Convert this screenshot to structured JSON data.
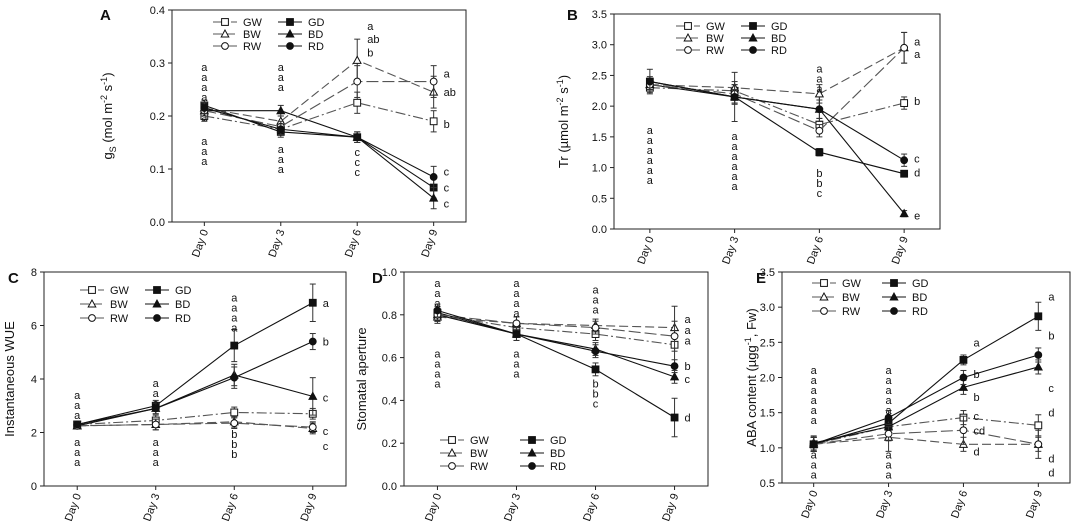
{
  "figure": {
    "x_categories": [
      "Day 0",
      "Day 3",
      "Day 6",
      "Day 9"
    ]
  },
  "legend_labels": [
    "GW",
    "GD",
    "BW",
    "BD",
    "RW",
    "RD"
  ],
  "chart_data": [
    {
      "panel": "A",
      "type": "line",
      "ylabel_main": "g",
      "ylabel_sub": "S",
      "ylabel_units": "(mol m",
      "ylabel_exp1": "-2",
      "ylabel_mid": " s",
      "ylabel_exp2": "-1",
      "ylabel_end": ")",
      "ylim": [
        0.0,
        0.4
      ],
      "yticks": [
        "0.0",
        "0.1",
        "0.2",
        "0.3",
        "0.4"
      ],
      "categories": [
        "Day 0",
        "Day 3",
        "Day 6",
        "Day 9"
      ],
      "legend_pos": "top",
      "series": [
        {
          "name": "GW",
          "values": [
            0.2,
            0.175,
            0.225,
            0.19
          ],
          "err": [
            0.01,
            0.01,
            0.02,
            0.02
          ]
        },
        {
          "name": "GD",
          "values": [
            0.22,
            0.17,
            0.16,
            0.065
          ],
          "err": [
            0.01,
            0.01,
            0.01,
            0.02
          ]
        },
        {
          "name": "BW",
          "values": [
            0.215,
            0.19,
            0.305,
            0.245
          ],
          "err": [
            0.01,
            0.01,
            0.04,
            0.03
          ]
        },
        {
          "name": "BD",
          "values": [
            0.21,
            0.21,
            0.16,
            0.045
          ],
          "err": [
            0.01,
            0.01,
            0.01,
            0.02
          ]
        },
        {
          "name": "RW",
          "values": [
            0.21,
            0.18,
            0.265,
            0.265
          ],
          "err": [
            0.01,
            0.01,
            0.03,
            0.03
          ]
        },
        {
          "name": "RD",
          "values": [
            0.215,
            0.175,
            0.16,
            0.085
          ],
          "err": [
            0.01,
            0.01,
            0.01,
            0.02
          ]
        }
      ],
      "letter_columns": [
        {
          "x": "Day 0",
          "at": 0.285,
          "letters": [
            "a",
            "a",
            "a",
            "a",
            "a",
            "a"
          ]
        },
        {
          "x": "Day 0",
          "at": 0.145,
          "letters": [
            "a",
            "a",
            "a"
          ]
        },
        {
          "x": "Day 3",
          "at": 0.285,
          "letters": [
            "a",
            "a",
            "a"
          ]
        },
        {
          "x": "Day 3",
          "at": 0.13,
          "letters": [
            "a",
            "a",
            "a"
          ]
        },
        {
          "x": "Day 6",
          "at": 0.125,
          "letters": [
            "c",
            "c",
            "c"
          ]
        }
      ],
      "end_labels": [
        {
          "x": "Day 6",
          "at": 0.37,
          "text": "a"
        },
        {
          "x": "Day 6",
          "at": 0.345,
          "text": "ab"
        },
        {
          "x": "Day 6",
          "at": 0.32,
          "text": "b"
        },
        {
          "x": "Day 9",
          "at": 0.28,
          "text": "a"
        },
        {
          "x": "Day 9",
          "at": 0.245,
          "text": "ab"
        },
        {
          "x": "Day 9",
          "at": 0.185,
          "text": "b"
        },
        {
          "x": "Day 9",
          "at": 0.095,
          "text": "c"
        },
        {
          "x": "Day 9",
          "at": 0.065,
          "text": "c"
        },
        {
          "x": "Day 9",
          "at": 0.035,
          "text": "c"
        }
      ]
    },
    {
      "panel": "B",
      "type": "line",
      "ylabel_main": "Tr",
      "ylabel_sub": "",
      "ylabel_units": "(µmol m",
      "ylabel_exp1": "-2",
      "ylabel_mid": " s",
      "ylabel_exp2": "-1",
      "ylabel_end": ")",
      "ylim": [
        0.0,
        3.5
      ],
      "yticks": [
        "0.0",
        "0.5",
        "1.0",
        "1.5",
        "2.0",
        "2.5",
        "3.0",
        "3.5"
      ],
      "categories": [
        "Day 0",
        "Day 3",
        "Day 6",
        "Day 9"
      ],
      "legend_pos": "top",
      "series": [
        {
          "name": "GW",
          "values": [
            2.3,
            2.25,
            1.7,
            2.05
          ],
          "err": [
            0.08,
            0.1,
            0.1,
            0.1
          ]
        },
        {
          "name": "GD",
          "values": [
            2.4,
            2.15,
            1.25,
            0.9
          ],
          "err": [
            0.08,
            0.1,
            0.06,
            0.05
          ]
        },
        {
          "name": "BW",
          "values": [
            2.35,
            2.3,
            2.2,
            2.95
          ],
          "err": [
            0.08,
            0.1,
            0.15,
            0.25
          ]
        },
        {
          "name": "BD",
          "values": [
            2.35,
            2.15,
            1.95,
            0.25
          ],
          "err": [
            0.08,
            0.12,
            0.15,
            0.05
          ]
        },
        {
          "name": "RW",
          "values": [
            2.35,
            2.2,
            1.6,
            2.95
          ],
          "err": [
            0.08,
            0.15,
            0.1,
            0.25
          ]
        },
        {
          "name": "RD",
          "values": [
            2.4,
            2.15,
            1.95,
            1.12
          ],
          "err": [
            0.2,
            0.4,
            0.2,
            0.1
          ]
        }
      ],
      "letter_columns": [
        {
          "x": "Day 0",
          "at": 1.55,
          "letters": [
            "a",
            "a",
            "a",
            "a",
            "a",
            "a"
          ]
        },
        {
          "x": "Day 3",
          "at": 1.45,
          "letters": [
            "a",
            "a",
            "a",
            "a",
            "a",
            "a"
          ]
        },
        {
          "x": "Day 6",
          "at": 2.55,
          "letters": [
            "a",
            "a",
            "a"
          ]
        },
        {
          "x": "Day 6",
          "at": 0.85,
          "letters": [
            "b",
            "b",
            "c"
          ]
        }
      ],
      "end_labels": [
        {
          "x": "Day 9",
          "at": 3.05,
          "text": "a"
        },
        {
          "x": "Day 9",
          "at": 2.85,
          "text": "a"
        },
        {
          "x": "Day 9",
          "at": 2.08,
          "text": "b"
        },
        {
          "x": "Day 9",
          "at": 1.15,
          "text": "c"
        },
        {
          "x": "Day 9",
          "at": 0.92,
          "text": "d"
        },
        {
          "x": "Day 9",
          "at": 0.22,
          "text": "e"
        }
      ]
    },
    {
      "panel": "C",
      "type": "line",
      "ylabel_main": "Instantaneous WUE",
      "ylabel_sub": "",
      "ylabel_units": "",
      "ylabel_exp1": "",
      "ylabel_mid": "",
      "ylabel_exp2": "",
      "ylabel_end": "",
      "ylim": [
        0,
        8
      ],
      "yticks": [
        "0",
        "2",
        "4",
        "6",
        "8"
      ],
      "categories": [
        "Day 0",
        "Day 3",
        "Day 6",
        "Day 9"
      ],
      "legend_pos": "top",
      "series": [
        {
          "name": "GW",
          "values": [
            2.3,
            2.45,
            2.75,
            2.7
          ],
          "err": [
            0.1,
            0.2,
            0.2,
            0.2
          ]
        },
        {
          "name": "GD",
          "values": [
            2.3,
            3.0,
            5.25,
            6.85
          ],
          "err": [
            0.1,
            0.2,
            0.6,
            0.7
          ]
        },
        {
          "name": "BW",
          "values": [
            2.25,
            2.3,
            2.4,
            2.15
          ],
          "err": [
            0.1,
            0.2,
            0.2,
            0.2
          ]
        },
        {
          "name": "BD",
          "values": [
            2.25,
            2.9,
            4.15,
            3.35
          ],
          "err": [
            0.1,
            0.2,
            0.4,
            0.7
          ]
        },
        {
          "name": "RW",
          "values": [
            2.25,
            2.3,
            2.35,
            2.2
          ],
          "err": [
            0.1,
            0.2,
            0.2,
            0.2
          ]
        },
        {
          "name": "RD",
          "values": [
            2.3,
            2.9,
            4.05,
            5.4
          ],
          "err": [
            0.1,
            0.2,
            0.4,
            0.3
          ]
        }
      ],
      "letter_columns": [
        {
          "x": "Day 0",
          "at": 3.25,
          "letters": [
            "a",
            "a",
            "a"
          ]
        },
        {
          "x": "Day 0",
          "at": 1.5,
          "letters": [
            "a",
            "a",
            "a"
          ]
        },
        {
          "x": "Day 3",
          "at": 3.7,
          "letters": [
            "a",
            "a",
            "a"
          ]
        },
        {
          "x": "Day 3",
          "at": 1.5,
          "letters": [
            "a",
            "a",
            "a"
          ]
        },
        {
          "x": "Day 6",
          "at": 6.9,
          "letters": [
            "a",
            "a",
            "a",
            "a"
          ]
        },
        {
          "x": "Day 6",
          "at": 1.8,
          "letters": [
            "b",
            "b",
            "b"
          ]
        }
      ],
      "end_labels": [
        {
          "x": "Day 9",
          "at": 6.85,
          "text": "a"
        },
        {
          "x": "Day 9",
          "at": 5.4,
          "text": "b"
        },
        {
          "x": "Day 9",
          "at": 3.3,
          "text": "c"
        },
        {
          "x": "Day 9",
          "at": 2.05,
          "text": "c"
        },
        {
          "x": "Day 9",
          "at": 1.5,
          "text": "c"
        }
      ]
    },
    {
      "panel": "D",
      "type": "line",
      "ylabel_main": "Stomatal aperture",
      "ylabel_sub": "",
      "ylabel_units": "",
      "ylabel_exp1": "",
      "ylabel_mid": "",
      "ylabel_exp2": "",
      "ylabel_end": "",
      "ylim": [
        0.0,
        1.0
      ],
      "yticks": [
        "0.0",
        "0.2",
        "0.4",
        "0.6",
        "0.8",
        "1.0"
      ],
      "categories": [
        "Day 0",
        "Day 3",
        "Day 6",
        "Day 9"
      ],
      "legend_pos": "bottom",
      "series": [
        {
          "name": "GW",
          "values": [
            0.8,
            0.74,
            0.71,
            0.66
          ],
          "err": [
            0.03,
            0.03,
            0.03,
            0.03
          ]
        },
        {
          "name": "GD",
          "values": [
            0.81,
            0.71,
            0.545,
            0.32
          ],
          "err": [
            0.03,
            0.03,
            0.03,
            0.09
          ]
        },
        {
          "name": "BW",
          "values": [
            0.79,
            0.76,
            0.75,
            0.74
          ],
          "err": [
            0.03,
            0.03,
            0.03,
            0.03
          ]
        },
        {
          "name": "BD",
          "values": [
            0.8,
            0.71,
            0.64,
            0.51
          ],
          "err": [
            0.03,
            0.03,
            0.03,
            0.03
          ]
        },
        {
          "name": "RW",
          "values": [
            0.8,
            0.76,
            0.74,
            0.7
          ],
          "err": [
            0.03,
            0.03,
            0.03,
            0.14
          ]
        },
        {
          "name": "RD",
          "values": [
            0.82,
            0.71,
            0.63,
            0.56
          ],
          "err": [
            0.03,
            0.03,
            0.03,
            0.03
          ]
        }
      ],
      "letter_columns": [
        {
          "x": "Day 0",
          "at": 0.93,
          "letters": [
            "a",
            "a",
            "a"
          ]
        },
        {
          "x": "Day 0",
          "at": 0.6,
          "letters": [
            "a",
            "a",
            "a",
            "a"
          ]
        },
        {
          "x": "Day 3",
          "at": 0.93,
          "letters": [
            "a",
            "a",
            "a",
            "a"
          ]
        },
        {
          "x": "Day 3",
          "at": 0.6,
          "letters": [
            "a",
            "a",
            "a"
          ]
        },
        {
          "x": "Day 6",
          "at": 0.9,
          "letters": [
            "a",
            "a",
            "a"
          ]
        },
        {
          "x": "Day 6",
          "at": 0.46,
          "letters": [
            "b",
            "b",
            "c"
          ]
        }
      ],
      "end_labels": [
        {
          "x": "Day 9",
          "at": 0.78,
          "text": "a"
        },
        {
          "x": "Day 9",
          "at": 0.73,
          "text": "a"
        },
        {
          "x": "Day 9",
          "at": 0.68,
          "text": "a"
        },
        {
          "x": "Day 9",
          "at": 0.56,
          "text": "b"
        },
        {
          "x": "Day 9",
          "at": 0.5,
          "text": "c"
        },
        {
          "x": "Day 9",
          "at": 0.32,
          "text": "d"
        }
      ]
    },
    {
      "panel": "E",
      "type": "line",
      "ylabel_main": "ABA content (µgg",
      "ylabel_sub": "",
      "ylabel_units": "",
      "ylabel_exp1": "-1",
      "ylabel_mid": ", Fw)",
      "ylabel_exp2": "",
      "ylabel_end": "",
      "ylim": [
        0.5,
        3.5
      ],
      "yticks": [
        "0.5",
        "1.0",
        "1.5",
        "2.0",
        "2.5",
        "3.0",
        "3.5"
      ],
      "categories": [
        "Day 0",
        "Day 3",
        "Day 6",
        "Day 9"
      ],
      "legend_pos": "top",
      "series": [
        {
          "name": "GW",
          "values": [
            1.05,
            1.3,
            1.43,
            1.32
          ],
          "err": [
            0.1,
            0.1,
            0.1,
            0.15
          ]
        },
        {
          "name": "GD",
          "values": [
            1.05,
            1.35,
            2.25,
            2.87
          ],
          "err": [
            0.1,
            0.1,
            0.07,
            0.2
          ]
        },
        {
          "name": "BW",
          "values": [
            1.05,
            1.15,
            1.05,
            1.05
          ],
          "err": [
            0.1,
            0.2,
            0.1,
            0.1
          ]
        },
        {
          "name": "BD",
          "values": [
            1.07,
            1.3,
            1.86,
            2.15
          ],
          "err": [
            0.1,
            0.1,
            0.1,
            0.1
          ]
        },
        {
          "name": "RW",
          "values": [
            1.05,
            1.2,
            1.25,
            1.05
          ],
          "err": [
            0.1,
            0.1,
            0.2,
            0.2
          ]
        },
        {
          "name": "RD",
          "values": [
            1.05,
            1.43,
            2.0,
            2.32
          ],
          "err": [
            0.1,
            0.1,
            0.1,
            0.1
          ]
        }
      ],
      "letter_columns": [
        {
          "x": "Day 0",
          "at": 2.05,
          "letters": [
            "a",
            "a",
            "a",
            "a",
            "a",
            "a"
          ]
        },
        {
          "x": "Day 0",
          "at": 0.85,
          "letters": [
            "a",
            "a",
            "a"
          ]
        },
        {
          "x": "Day 3",
          "at": 2.05,
          "letters": [
            "a",
            "a",
            "a",
            "a",
            "a",
            "a"
          ]
        },
        {
          "x": "Day 3",
          "at": 0.85,
          "letters": [
            "a",
            "a",
            "a"
          ]
        }
      ],
      "end_labels": [
        {
          "x": "Day 6",
          "at": 2.5,
          "text": "a"
        },
        {
          "x": "Day 6",
          "at": 2.05,
          "text": "b"
        },
        {
          "x": "Day 6",
          "at": 1.72,
          "text": "b"
        },
        {
          "x": "Day 6",
          "at": 1.45,
          "text": "c"
        },
        {
          "x": "Day 6",
          "at": 1.25,
          "text": "cd"
        },
        {
          "x": "Day 6",
          "at": 0.95,
          "text": "d"
        },
        {
          "x": "Day 9",
          "at": 3.15,
          "text": "a"
        },
        {
          "x": "Day 9",
          "at": 2.6,
          "text": "b"
        },
        {
          "x": "Day 9",
          "at": 1.85,
          "text": "c"
        },
        {
          "x": "Day 9",
          "at": 1.5,
          "text": "d"
        },
        {
          "x": "Day 9",
          "at": 0.85,
          "text": "d"
        },
        {
          "x": "Day 9",
          "at": 0.65,
          "text": "d"
        }
      ]
    }
  ]
}
